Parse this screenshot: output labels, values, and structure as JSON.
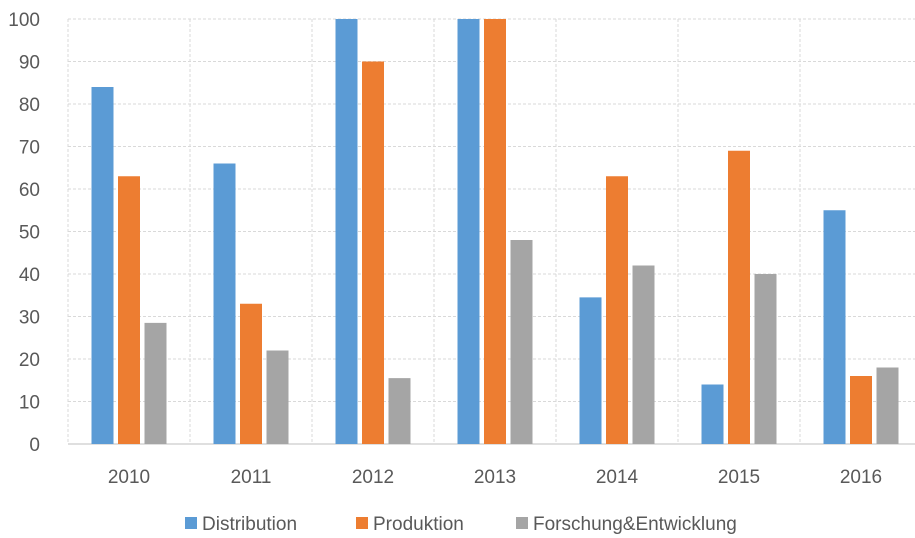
{
  "chart_data": {
    "type": "bar",
    "title": "",
    "xlabel": "",
    "ylabel": "",
    "ylim": [
      0,
      100
    ],
    "yticks": [
      0,
      10,
      20,
      30,
      40,
      50,
      60,
      70,
      80,
      90,
      100
    ],
    "categories": [
      "2010",
      "2011",
      "2012",
      "2013",
      "2014",
      "2015",
      "2016"
    ],
    "series": [
      {
        "name": "Distribution",
        "color": "#5B9BD5",
        "values": [
          84,
          66,
          100,
          100,
          34.5,
          14,
          55
        ]
      },
      {
        "name": "Produktion",
        "color": "#ED7D31",
        "values": [
          63,
          33,
          90,
          100,
          63,
          69,
          16
        ]
      },
      {
        "name": "Forschung&Entwicklung",
        "color": "#A5A5A5",
        "values": [
          28.5,
          22,
          15.5,
          48,
          42,
          40,
          18
        ]
      }
    ],
    "grid": {
      "horizontal": true,
      "vertical": true,
      "color": "#D9D9D9"
    },
    "legend_position": "bottom"
  }
}
